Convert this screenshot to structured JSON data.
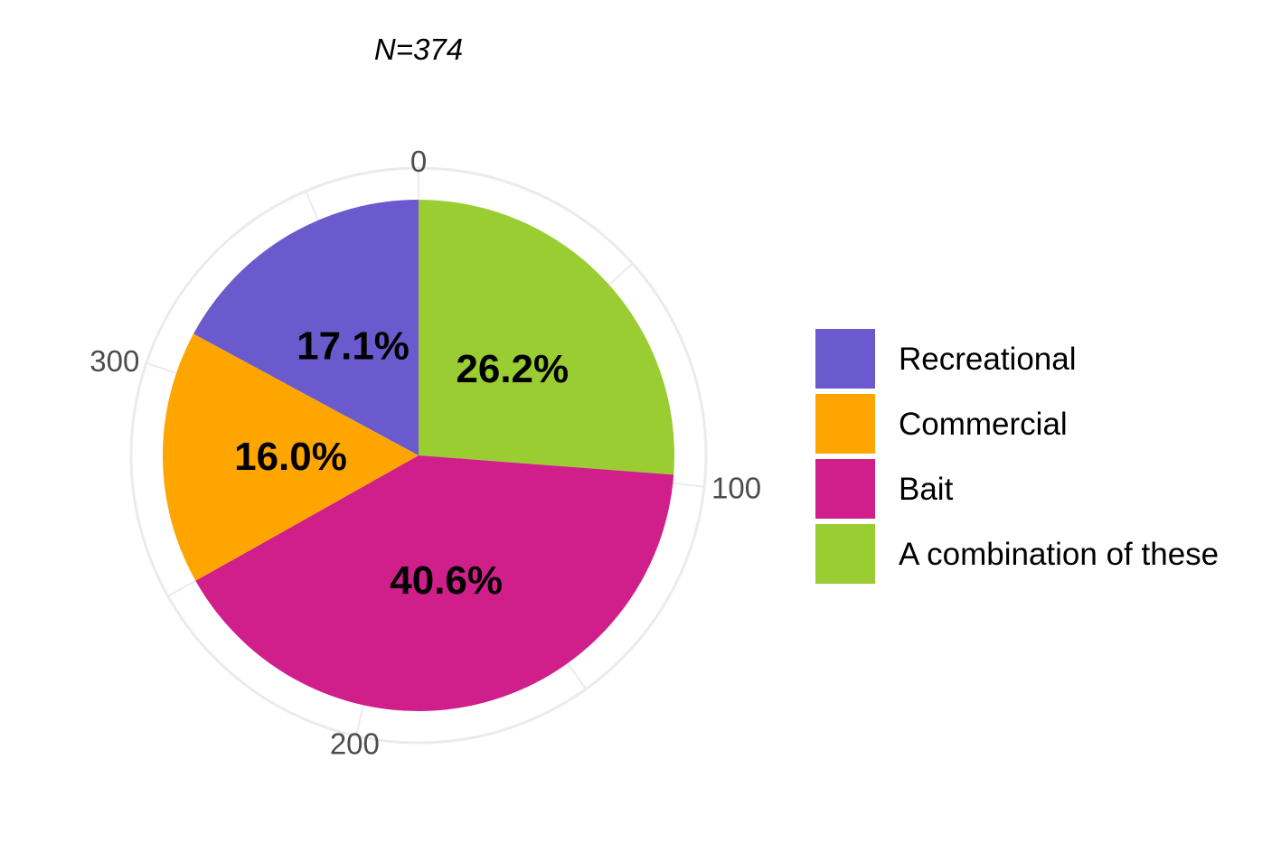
{
  "chart_data": {
    "type": "pie",
    "subtitle": "N=374",
    "total": 374,
    "categories": [
      "Recreational",
      "Commercial",
      "Bait",
      "A combination of these"
    ],
    "values": [
      64,
      60,
      152,
      98
    ],
    "percent_labels": [
      "17.1%",
      "16.0%",
      "40.6%",
      "26.2%"
    ],
    "colors": [
      "#6A5ACD",
      "#FFA500",
      "#D01F8B",
      "#9ACD32"
    ],
    "slice_order_clockwise_from_top": [
      "A combination of these",
      "Bait",
      "Commercial",
      "Recreational"
    ],
    "axis_ticks": [
      "0",
      "100",
      "200",
      "300"
    ],
    "axis_tick_values": [
      0,
      100,
      200,
      300
    ],
    "grid": true,
    "legend_position": "right"
  }
}
